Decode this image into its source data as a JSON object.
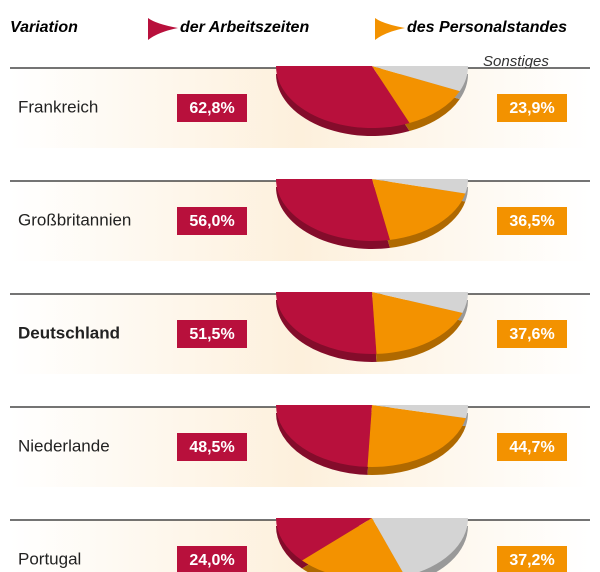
{
  "legend": {
    "title": "Variation",
    "items": [
      {
        "label": "der Arbeitszeiten",
        "color": "#b8103c"
      },
      {
        "label": "des Personalstandes",
        "color": "#f39200"
      },
      {
        "label": "Sonstiges",
        "color": "#d4d4d4"
      }
    ]
  },
  "chart_data": [
    {
      "type": "pie",
      "title": "Frankreich",
      "values": [
        62.8,
        23.9,
        13.3
      ],
      "value_labels": [
        "62,8%",
        "23,9%",
        null
      ],
      "bold": false
    },
    {
      "type": "pie",
      "title": "Großbritannien",
      "values": [
        56.0,
        36.5,
        7.5
      ],
      "value_labels": [
        "56,0%",
        "36,5%",
        null
      ],
      "bold": false
    },
    {
      "type": "pie",
      "title": "Deutschland",
      "values": [
        51.5,
        37.6,
        10.9
      ],
      "value_labels": [
        "51,5%",
        "37,6%",
        null
      ],
      "bold": true
    },
    {
      "type": "pie",
      "title": "Niederlande",
      "values": [
        48.5,
        44.7,
        6.8
      ],
      "value_labels": [
        "48,5%",
        "44,7%",
        null
      ],
      "bold": false
    },
    {
      "type": "pie",
      "title": "Portugal",
      "values": [
        24.0,
        37.2,
        38.8
      ],
      "value_labels": [
        "24,0%",
        "37,2%",
        null
      ],
      "bold": false
    }
  ]
}
